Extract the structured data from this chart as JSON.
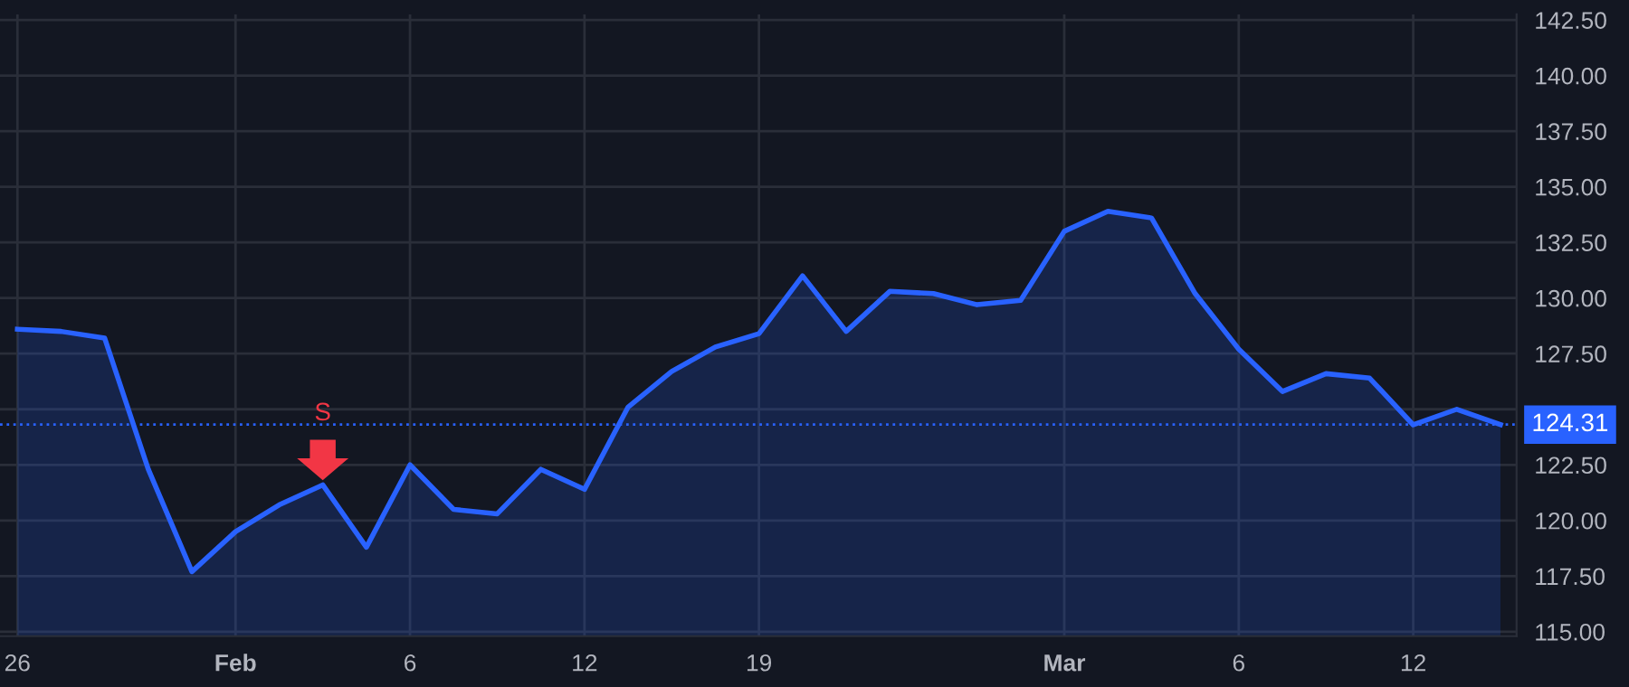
{
  "chart_data": {
    "type": "area",
    "categories": [
      "26",
      null,
      null,
      null,
      null,
      "Feb",
      null,
      null,
      null,
      "6",
      null,
      null,
      null,
      "12",
      null,
      null,
      null,
      "19",
      null,
      null,
      null,
      null,
      null,
      null,
      "Mar",
      null,
      null,
      null,
      "6",
      null,
      null,
      null,
      "12",
      null,
      null
    ],
    "series": [
      {
        "color": "#2962ff",
        "values": [
          128.6,
          128.5,
          128.2,
          122.3,
          117.7,
          119.5,
          120.7,
          121.6,
          118.8,
          122.5,
          120.5,
          120.3,
          122.3,
          121.4,
          125.1,
          126.7,
          127.8,
          128.4,
          131.0,
          128.5,
          130.3,
          130.2,
          129.7,
          129.9,
          133.0,
          133.9,
          133.6,
          130.2,
          127.7,
          125.8,
          126.6,
          126.4,
          124.3,
          125.0,
          124.31
        ]
      },
      {
        "type": "scatter",
        "name": "S",
        "color": "#f23645",
        "marker": "triangle",
        "values": [
          null,
          null,
          null,
          null,
          null,
          null,
          null,
          122.8,
          null,
          null,
          null,
          null,
          null,
          null,
          null,
          null,
          null,
          null,
          null,
          null,
          null,
          null,
          null,
          null,
          null,
          null,
          null,
          null,
          null,
          null,
          null,
          null,
          null,
          null,
          null
        ]
      }
    ],
    "ylim": [
      114.8,
      142.75
    ],
    "yticks": [
      {
        "value": 115,
        "label": "115.00"
      },
      {
        "value": 117.5,
        "label": "117.50"
      },
      {
        "value": 120,
        "label": "120.00"
      },
      {
        "value": 122.5,
        "label": "122.50"
      },
      {
        "value": 125,
        "label": null
      },
      {
        "value": 127.5,
        "label": "127.50"
      },
      {
        "value": 130,
        "label": "130.00"
      },
      {
        "value": 132.5,
        "label": "132.50"
      },
      {
        "value": 135,
        "label": "135.00"
      },
      {
        "value": 137.5,
        "label": "137.50"
      },
      {
        "value": 140,
        "label": "140.00"
      },
      {
        "value": 142.5,
        "label": "142.50"
      }
    ],
    "ref_lines": [
      {
        "axis": "y",
        "value": 124.31,
        "label": "124.31",
        "color": "#2962ff",
        "line_style": "dotted"
      }
    ],
    "grid": true
  }
}
